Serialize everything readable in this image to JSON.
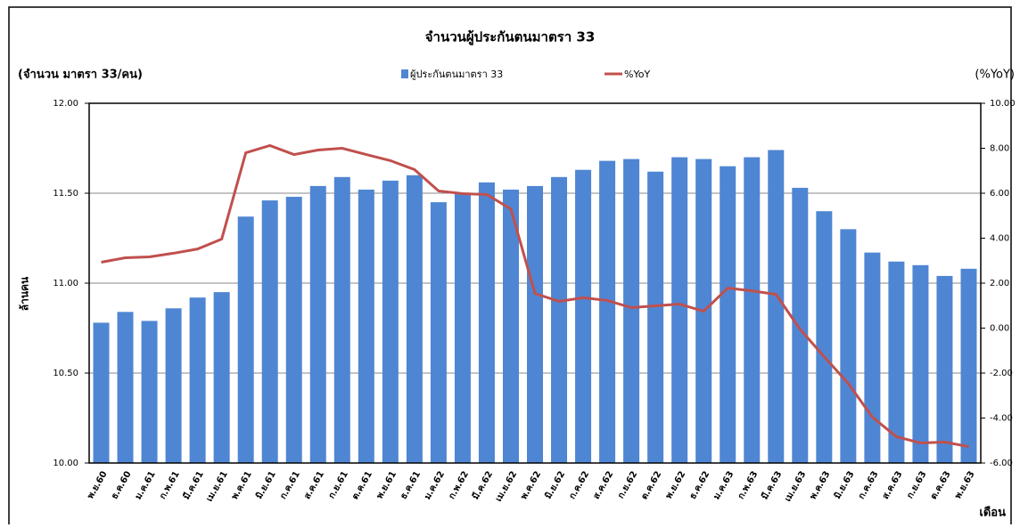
{
  "chart_data": {
    "type": "bar",
    "title": "จำนวนผู้ประกันตนมาตรา 33",
    "y_unit_label": "(จำนวน มาตรา 33/คน)",
    "y2_unit_label": "(%YoY)",
    "y_axis_label": "ล้านคน",
    "x_axis_label": "เดือน",
    "categories": [
      "พ.ย.60",
      "ธ.ค.60",
      "ม.ค.61",
      "ก.พ.61",
      "มี.ค.61",
      "เม.ย.61",
      "พ.ค.61",
      "มิ.ย.61",
      "ก.ค.61",
      "ส.ค.61",
      "ก.ย.61",
      "ต.ค.61",
      "พ.ย.61",
      "ธ.ค.61",
      "ม.ค.62",
      "ก.พ.62",
      "มี.ค.62",
      "เม.ย.62",
      "พ.ค.62",
      "มิ.ย.62",
      "ก.ค.62",
      "ส.ค.62",
      "ก.ย.62",
      "ต.ค.62",
      "พ.ย.62",
      "ธ.ค.62",
      "ม.ค.63",
      "ก.พ.63",
      "มี.ค.63",
      "เม.ย.63",
      "พ.ค.63",
      "มิ.ย.63",
      "ก.ค.63",
      "ส.ค.63",
      "ก.ย.63",
      "ต.ค.63",
      "พ.ย.63"
    ],
    "series": [
      {
        "name": "ผู้ประกันตนมาตรา 33",
        "type": "bar",
        "color": "#4f86d3",
        "values": [
          10.78,
          10.84,
          10.79,
          10.86,
          10.92,
          10.95,
          11.37,
          11.46,
          11.48,
          11.54,
          11.59,
          11.52,
          11.57,
          11.6,
          11.45,
          11.5,
          11.56,
          11.52,
          11.54,
          11.59,
          11.63,
          11.68,
          11.69,
          11.62,
          11.7,
          11.69,
          11.65,
          11.7,
          11.74,
          11.53,
          11.4,
          11.3,
          11.17,
          11.12,
          11.1,
          11.04,
          11.08
        ]
      },
      {
        "name": "%YoY",
        "type": "line",
        "axis": "y2",
        "color": "#c0504d",
        "values": [
          2.93,
          3.13,
          3.17,
          3.33,
          3.52,
          3.96,
          7.8,
          8.12,
          7.72,
          7.92,
          8.0,
          7.72,
          7.45,
          7.05,
          6.1,
          5.98,
          5.94,
          5.3,
          1.54,
          1.19,
          1.35,
          1.23,
          0.91,
          0.99,
          1.07,
          0.75,
          1.78,
          1.66,
          1.5,
          -0.05,
          -1.27,
          -2.46,
          -3.96,
          -4.83,
          -5.11,
          -5.07,
          -5.27
        ]
      }
    ],
    "ylim": [
      10,
      12
    ],
    "yticks": [
      {
        "value": 10,
        "label": "10.00"
      },
      {
        "value": 10.5,
        "label": "10.50"
      },
      {
        "value": 11,
        "label": "11.00"
      },
      {
        "value": 11.5,
        "label": "11.50"
      },
      {
        "value": 12,
        "label": "12.00"
      }
    ],
    "y2lim": [
      -6,
      10
    ],
    "y2ticks": [
      {
        "value": -6,
        "label": "-6.00"
      },
      {
        "value": -4,
        "label": "-4.00"
      },
      {
        "value": -2,
        "label": "-2.00"
      },
      {
        "value": 0,
        "label": "0.00"
      },
      {
        "value": 2,
        "label": "2.00"
      },
      {
        "value": 4,
        "label": "4.00"
      },
      {
        "value": 6,
        "label": "6.00"
      },
      {
        "value": 8,
        "label": "8.00"
      },
      {
        "value": 10,
        "label": "10.00"
      }
    ],
    "grid": true
  }
}
